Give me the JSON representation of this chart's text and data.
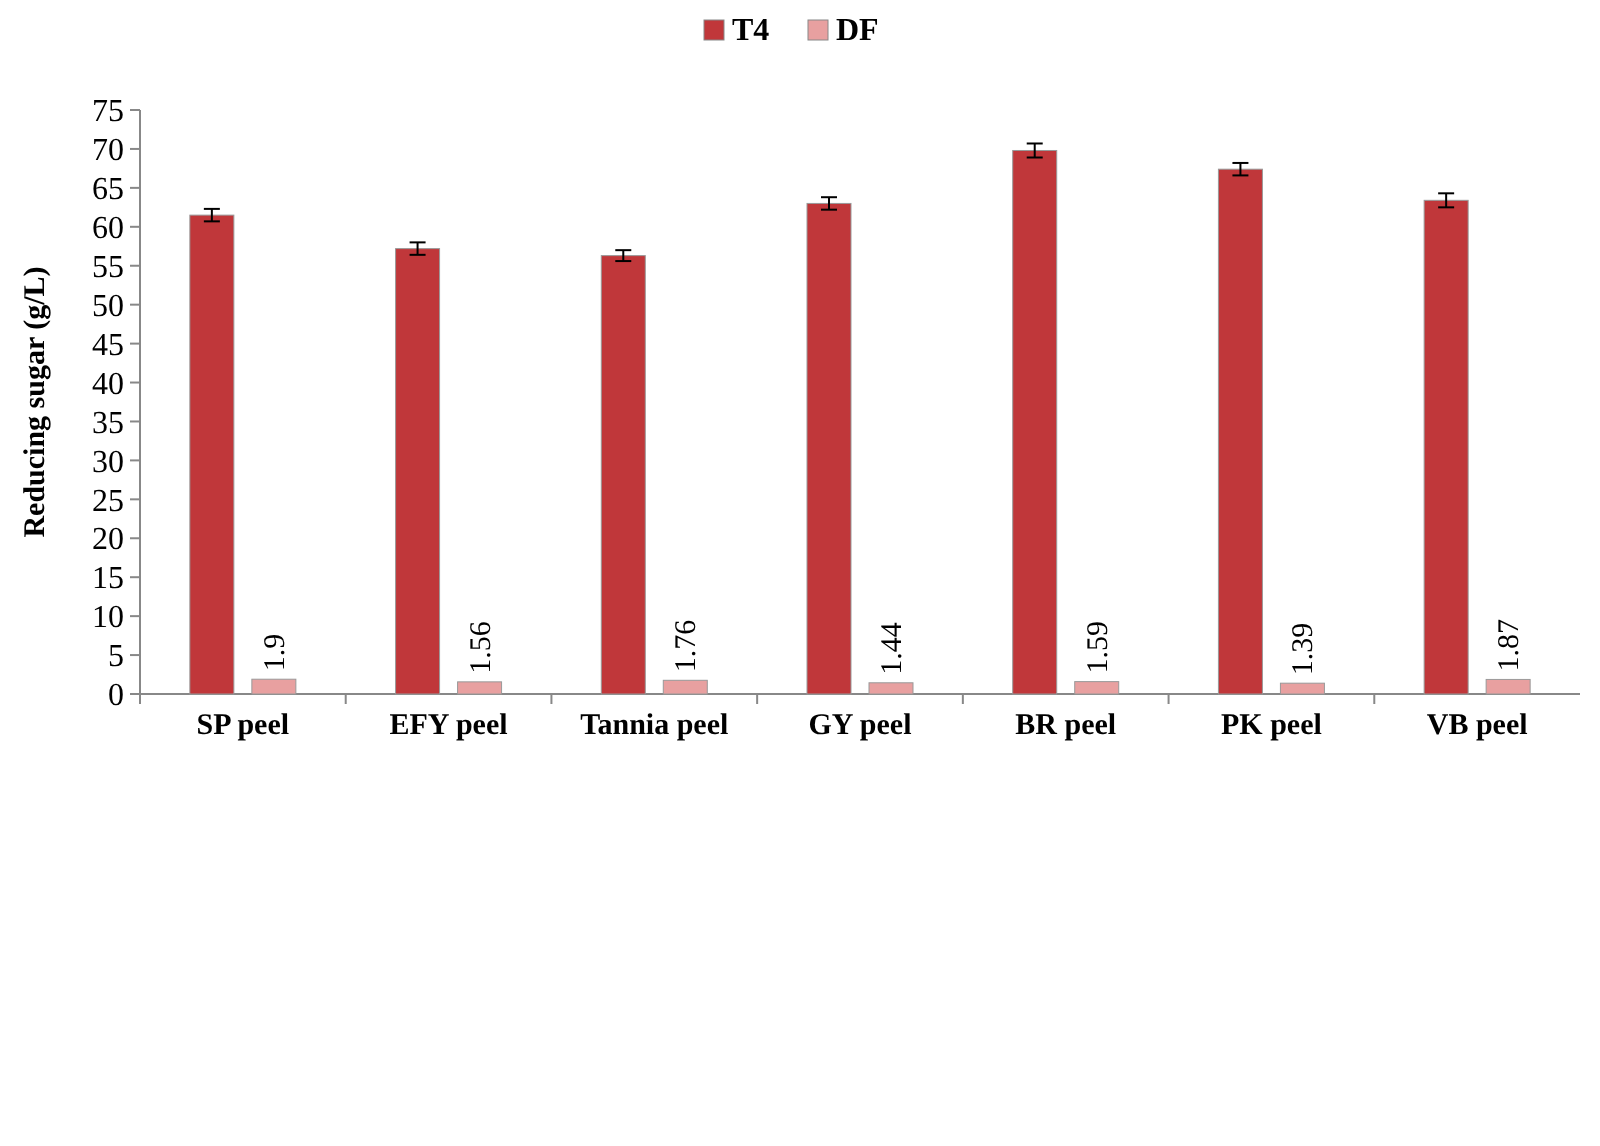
{
  "chart_data": {
    "type": "bar",
    "ylabel": "Reducing sugar (g/L)",
    "categories": [
      "SP peel",
      "EFY peel",
      "Tannia peel",
      "GY peel",
      "BR peel",
      "PK peel",
      "VB peel"
    ],
    "series": [
      {
        "name": "T4",
        "color": "#c0373a",
        "values": [
          61.5,
          57.2,
          56.3,
          63,
          69.8,
          67.4,
          63.4
        ],
        "errors": [
          0.8,
          0.8,
          0.7,
          0.8,
          0.9,
          0.8,
          0.9
        ]
      },
      {
        "name": "DF",
        "color": "#e8a0a0",
        "values": [
          1.9,
          1.56,
          1.76,
          1.44,
          1.59,
          1.39,
          1.87
        ],
        "value_labels": [
          "1.9",
          "1.56",
          "1.76",
          "1.44",
          "1.59",
          "1.39",
          "1.87"
        ]
      }
    ],
    "ylim": [
      0,
      75
    ],
    "yticks": [
      0,
      5,
      10,
      15,
      20,
      25,
      30,
      35,
      40,
      45,
      50,
      55,
      60,
      65,
      70,
      75
    ],
    "grid": false,
    "legend": "top"
  }
}
